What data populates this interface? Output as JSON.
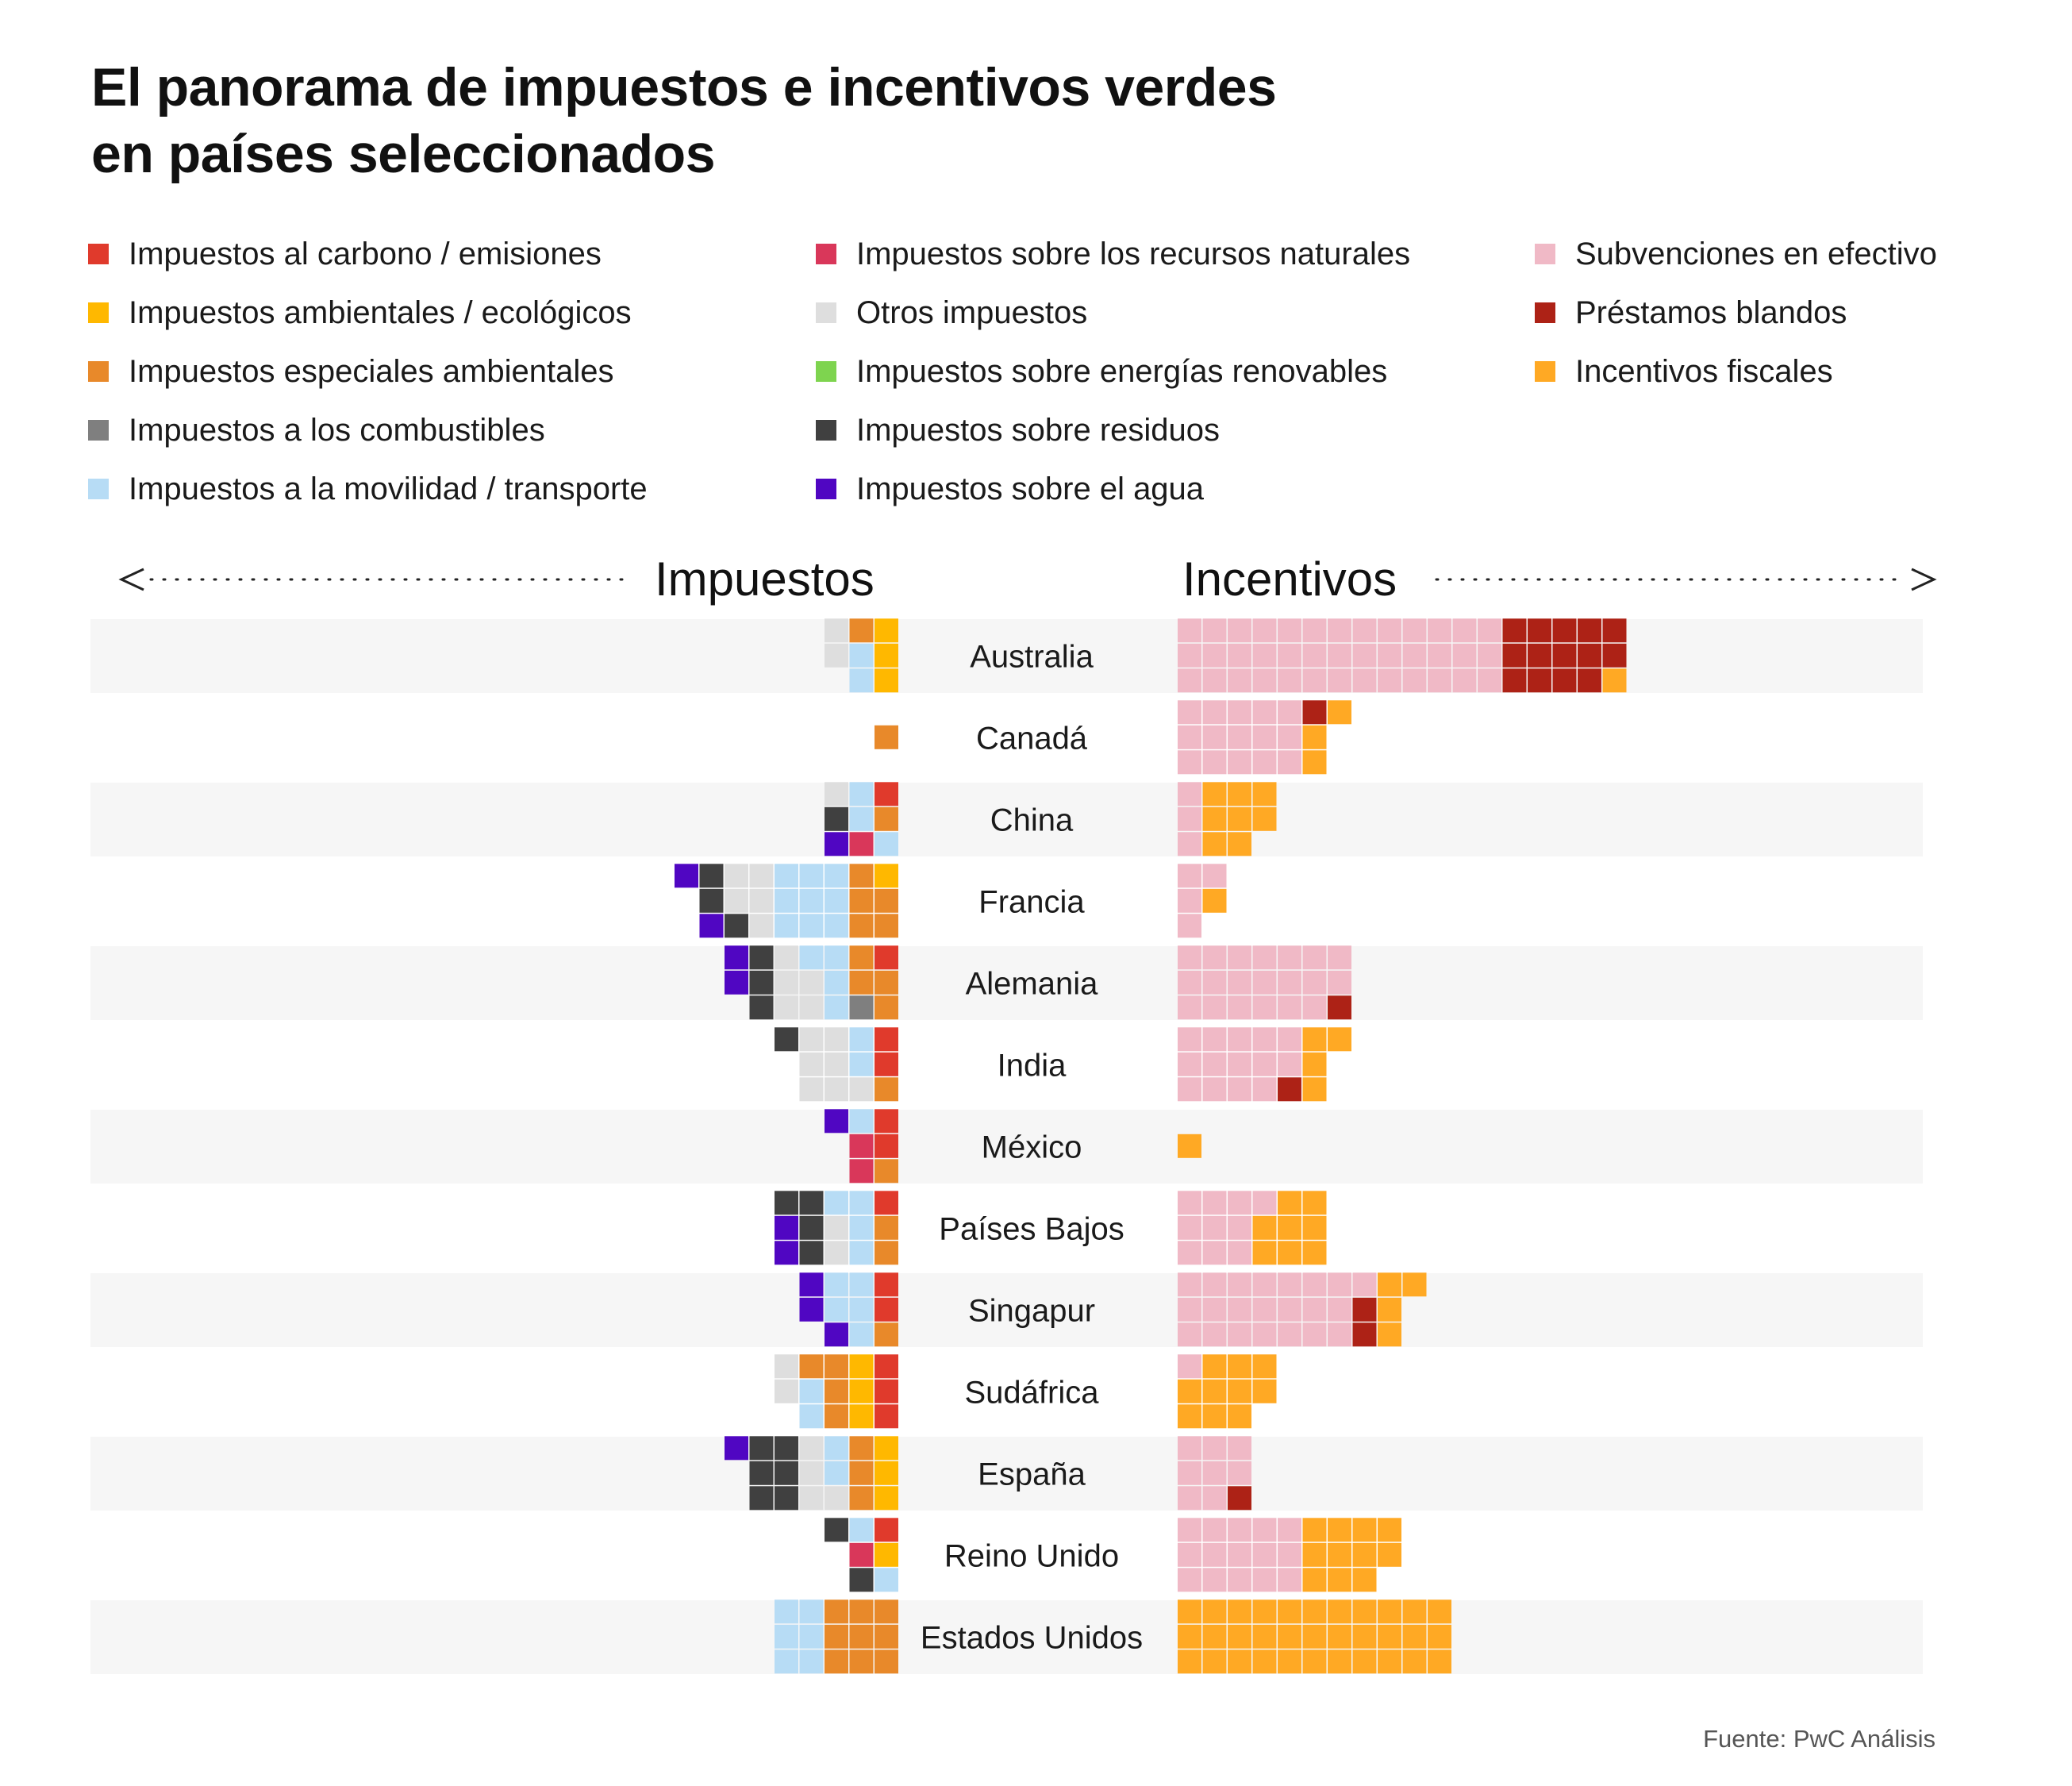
{
  "title_lines": [
    "El panorama de impuestos e incentivos verdes",
    "en países seleccionados"
  ],
  "headers": {
    "taxes": "Impuestos",
    "incentives": "Incentivos"
  },
  "legend": [
    [
      {
        "label": "Impuestos al carbono / emisiones",
        "color": "#e03a2c"
      },
      {
        "label": "Impuestos ambientales / ecológicos",
        "color": "#ffb800"
      },
      {
        "label": "Impuestos especiales ambientales",
        "color": "#e8892a"
      },
      {
        "label": "Impuestos a los combustibles",
        "color": "#7f7f7f"
      },
      {
        "label": "Impuestos a la movilidad / transporte",
        "color": "#b7dcf5"
      }
    ],
    [
      {
        "label": "Impuestos sobre los recursos naturales",
        "color": "#d9375a"
      },
      {
        "label": "Otros impuestos",
        "color": "#dedede"
      },
      {
        "label": "Impuestos sobre energías renovables",
        "color": "#7ed44f"
      },
      {
        "label": "Impuestos sobre residuos",
        "color": "#404040"
      },
      {
        "label": "Impuestos sobre el agua",
        "color": "#5006c2"
      }
    ],
    [
      {
        "label": "Subvenciones en efectivo",
        "color": "#f0b9c6"
      },
      {
        "label": "Préstamos blandos",
        "color": "#ad2216"
      },
      {
        "label": "Incentivos fiscales",
        "color": "#ffa924"
      }
    ]
  ],
  "chart_data": {
    "type": "waffle",
    "unit": "1 square = 1 measure",
    "categories": [
      "Australia",
      "Canadá",
      "China",
      "Francia",
      "Alemania",
      "India",
      "México",
      "Países Bajos",
      "Singapur",
      "Sudáfrica",
      "España",
      "Reino Unido",
      "Estados Unidos"
    ],
    "taxes": [
      {
        "country": "Australia",
        "counts": {
          "Impuestos ambientales / ecológicos": 3,
          "Impuestos especiales ambientales": 1,
          "Impuestos a la movilidad / transporte": 2,
          "Otros impuestos": 2
        }
      },
      {
        "country": "Canadá",
        "counts": {
          "Impuestos especiales ambientales": 1
        }
      },
      {
        "country": "China",
        "counts": {
          "Impuestos al carbono / emisiones": 1,
          "Impuestos especiales ambientales": 1,
          "Impuestos a la movilidad / transporte": 3,
          "Impuestos sobre los recursos naturales": 1,
          "Otros impuestos": 1,
          "Impuestos sobre residuos": 1,
          "Impuestos sobre el agua": 1
        }
      },
      {
        "country": "Francia",
        "counts": {
          "Impuestos ambientales / ecológicos": 1,
          "Impuestos especiales ambientales": 5,
          "Impuestos a la movilidad / transporte": 9,
          "Otros impuestos": 5,
          "Impuestos sobre residuos": 3,
          "Impuestos sobre el agua": 2
        }
      },
      {
        "country": "Alemania",
        "counts": {
          "Impuestos al carbono / emisiones": 1,
          "Impuestos especiales ambientales": 4,
          "Impuestos a los combustibles": 1,
          "Impuestos a la movilidad / transporte": 4,
          "Otros impuestos": 5,
          "Impuestos sobre residuos": 3,
          "Impuestos sobre el agua": 2
        }
      },
      {
        "country": "India",
        "counts": {
          "Impuestos al carbono / emisiones": 2,
          "Impuestos especiales ambientales": 1,
          "Impuestos a la movilidad / transporte": 2,
          "Otros impuestos": 7,
          "Impuestos sobre residuos": 1
        }
      },
      {
        "country": "México",
        "counts": {
          "Impuestos al carbono / emisiones": 2,
          "Impuestos especiales ambientales": 1,
          "Impuestos a la movilidad / transporte": 1,
          "Impuestos sobre los recursos naturales": 2,
          "Impuestos sobre el agua": 1
        }
      },
      {
        "country": "Países Bajos",
        "counts": {
          "Impuestos al carbono / emisiones": 1,
          "Impuestos especiales ambientales": 2,
          "Impuestos a la movilidad / transporte": 4,
          "Otros impuestos": 2,
          "Impuestos sobre residuos": 4,
          "Impuestos sobre el agua": 2
        }
      },
      {
        "country": "Singapur",
        "counts": {
          "Impuestos al carbono / emisiones": 2,
          "Impuestos especiales ambientales": 1,
          "Impuestos a la movilidad / transporte": 5,
          "Impuestos sobre el agua": 3
        }
      },
      {
        "country": "Sudáfrica",
        "counts": {
          "Impuestos al carbono / emisiones": 3,
          "Impuestos ambientales / ecológicos": 3,
          "Impuestos especiales ambientales": 4,
          "Impuestos a la movilidad / transporte": 2,
          "Otros impuestos": 2
        }
      },
      {
        "country": "España",
        "counts": {
          "Impuestos ambientales / ecológicos": 3,
          "Impuestos especiales ambientales": 3,
          "Impuestos a la movilidad / transporte": 2,
          "Otros impuestos": 4,
          "Impuestos sobre residuos": 6,
          "Impuestos sobre el agua": 1
        }
      },
      {
        "country": "Reino Unido",
        "counts": {
          "Impuestos al carbono / emisiones": 1,
          "Impuestos ambientales / ecológicos": 1,
          "Impuestos a la movilidad / transporte": 2,
          "Impuestos sobre los recursos naturales": 1,
          "Impuestos sobre residuos": 2
        }
      },
      {
        "country": "Estados Unidos",
        "counts": {
          "Impuestos especiales ambientales": 9,
          "Impuestos a la movilidad / transporte": 6
        }
      }
    ],
    "incentives": [
      {
        "country": "Australia",
        "counts": {
          "Subvenciones en efectivo": 39,
          "Préstamos blandos": 14,
          "Incentivos fiscales": 1
        }
      },
      {
        "country": "Canadá",
        "counts": {
          "Subvenciones en efectivo": 15,
          "Préstamos blandos": 1,
          "Incentivos fiscales": 3
        }
      },
      {
        "country": "China",
        "counts": {
          "Subvenciones en efectivo": 3,
          "Incentivos fiscales": 8
        }
      },
      {
        "country": "Francia",
        "counts": {
          "Subvenciones en efectivo": 4,
          "Incentivos fiscales": 1
        }
      },
      {
        "country": "Alemania",
        "counts": {
          "Subvenciones en efectivo": 20,
          "Préstamos blandos": 1
        }
      },
      {
        "country": "India",
        "counts": {
          "Subvenciones en efectivo": 14,
          "Préstamos blandos": 1,
          "Incentivos fiscales": 4
        }
      },
      {
        "country": "México",
        "counts": {
          "Incentivos fiscales": 1
        }
      },
      {
        "country": "Países Bajos",
        "counts": {
          "Subvenciones en efectivo": 10,
          "Incentivos fiscales": 8
        }
      },
      {
        "country": "Singapur",
        "counts": {
          "Subvenciones en efectivo": 22,
          "Préstamos blandos": 2,
          "Incentivos fiscales": 4
        }
      },
      {
        "country": "Sudáfrica",
        "counts": {
          "Subvenciones en efectivo": 1,
          "Incentivos fiscales": 10
        }
      },
      {
        "country": "España",
        "counts": {
          "Subvenciones en efectivo": 8,
          "Préstamos blandos": 1
        }
      },
      {
        "country": "Reino Unido",
        "counts": {
          "Subvenciones en efectivo": 15,
          "Incentivos fiscales": 11
        }
      },
      {
        "country": "Estados Unidos",
        "counts": {
          "Incentivos fiscales": 33
        }
      }
    ]
  },
  "source": "Fuente: PwC Análisis"
}
